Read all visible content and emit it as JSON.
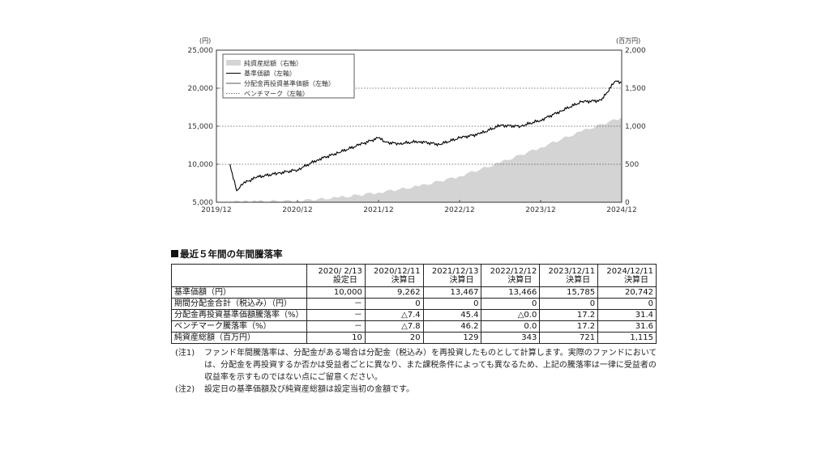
{
  "chart_data": {
    "type": "line",
    "left_axis": {
      "unit": "(円)",
      "ticks": [
        "5,000",
        "10,000",
        "15,000",
        "20,000",
        "25,000"
      ],
      "range": [
        5000,
        25000
      ]
    },
    "right_axis": {
      "unit": "(百万円)",
      "ticks": [
        "0",
        "500",
        "1,000",
        "1,500",
        "2,000"
      ],
      "range": [
        0,
        2000
      ]
    },
    "x_ticks": [
      "2019/12",
      "2020/12",
      "2021/12",
      "2022/12",
      "2023/12",
      "2024/12"
    ],
    "x_range": [
      "2019/12",
      "2024/12"
    ],
    "grid": "horizontal dotted",
    "legend_position": "top-left",
    "legend": [
      {
        "label": "純資産総額（右軸）",
        "style": "area",
        "color": "#d4d4d4"
      },
      {
        "label": "基準価額（左軸）",
        "style": "line",
        "color": "#000000"
      },
      {
        "label": "分配金再投資基準価額（左軸）",
        "style": "line",
        "color": "#555555"
      },
      {
        "label": "ベンチマーク（左軸）",
        "style": "dotted",
        "color": "#777777"
      }
    ],
    "series": [
      {
        "name": "純資産総額（右軸）",
        "axis": "right",
        "x": [
          "2020/02",
          "2020/06",
          "2020/12",
          "2021/06",
          "2021/12",
          "2022/06",
          "2022/12",
          "2023/06",
          "2023/12",
          "2024/06",
          "2024/12"
        ],
        "values": [
          10,
          12,
          20,
          60,
          129,
          210,
          343,
          520,
          721,
          930,
          1115
        ]
      },
      {
        "name": "基準価額（左軸）",
        "axis": "left",
        "x": [
          "2020/02",
          "2020/03",
          "2020/04",
          "2020/06",
          "2020/09",
          "2020/12",
          "2021/03",
          "2021/06",
          "2021/09",
          "2021/12",
          "2022/01",
          "2022/03",
          "2022/06",
          "2022/09",
          "2022/12",
          "2023/03",
          "2023/06",
          "2023/09",
          "2023/12",
          "2024/03",
          "2024/06",
          "2024/09",
          "2024/11",
          "2024/12"
        ],
        "values": [
          10000,
          6500,
          7500,
          8300,
          8800,
          9262,
          10600,
          11500,
          12500,
          13467,
          12900,
          12700,
          13000,
          12600,
          13466,
          14000,
          15100,
          15000,
          15785,
          17000,
          18200,
          18400,
          20900,
          20742
        ]
      }
    ]
  },
  "table": {
    "heading": "最近５年間の年間騰落率",
    "columns": [
      {
        "date": "2020/ 2/13",
        "label": "設定日"
      },
      {
        "date": "2020/12/11",
        "label": "決算日"
      },
      {
        "date": "2021/12/13",
        "label": "決算日"
      },
      {
        "date": "2022/12/12",
        "label": "決算日"
      },
      {
        "date": "2023/12/11",
        "label": "決算日"
      },
      {
        "date": "2024/12/11",
        "label": "決算日"
      }
    ],
    "rows": [
      {
        "label": "基準価額（円）",
        "values": [
          "10,000",
          "9,262",
          "13,467",
          "13,466",
          "15,785",
          "20,742"
        ]
      },
      {
        "label": "期間分配金合計（税込み）（円）",
        "values": [
          "－",
          "0",
          "0",
          "0",
          "0",
          "0"
        ]
      },
      {
        "label": "分配金再投資基準価額騰落率（%）",
        "values": [
          "－",
          "△7.4",
          "45.4",
          "△0.0",
          "17.2",
          "31.4"
        ]
      },
      {
        "label": "ベンチマーク騰落率（%）",
        "values": [
          "－",
          "△7.8",
          "46.2",
          "0.0",
          "17.2",
          "31.6"
        ]
      },
      {
        "label": "純資産総額（百万円）",
        "values": [
          "10",
          "20",
          "129",
          "343",
          "721",
          "1,115"
        ]
      }
    ]
  },
  "notes": [
    {
      "tag": "(注1)",
      "text": "ファンド年間騰落率は、分配金がある場合は分配金（税込み）を再投資したものとして計算します。実際のファンドにおいては、分配金を再投資するか否かは受益者ごとに異なり、また課税条件によっても異なるため、上記の騰落率は一律に受益者の収益率を示すものではない点にご留意ください。"
    },
    {
      "tag": "(注2)",
      "text": "設定日の基準価額及び純資産総額は設定当初の金額です。"
    }
  ]
}
